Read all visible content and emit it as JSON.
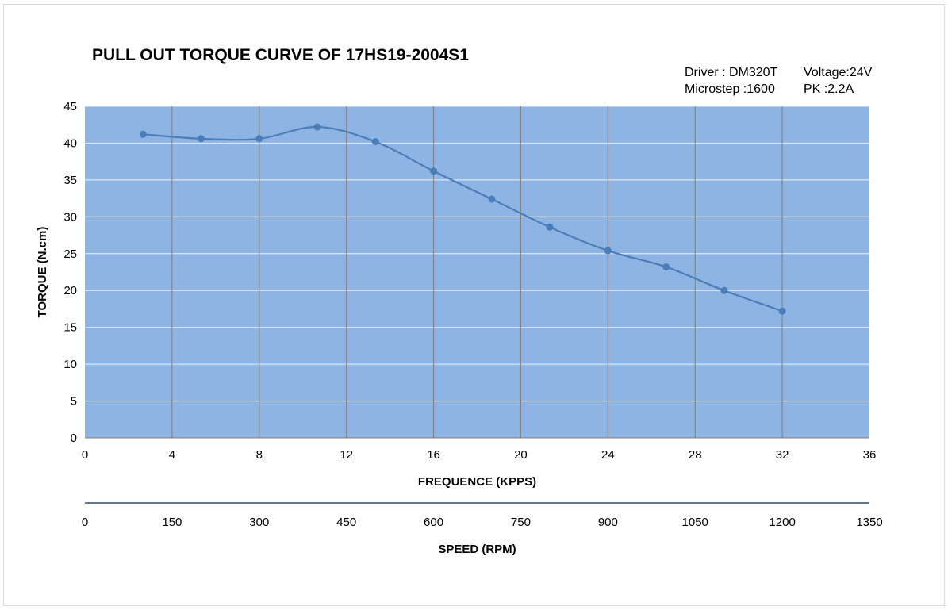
{
  "chart_data": {
    "type": "line",
    "title": "PULL OUT TORQUE CURVE OF 17HS19-2004S1",
    "info": {
      "driver": "Driver : DM320T",
      "voltage": "Voltage:24V",
      "microstep": "Microstep :1600",
      "pk": "PK :2.2A"
    },
    "xlabel": "FREQUENCE (KPPS)",
    "ylabel": "TORQUE (N.cm)",
    "x2label": "SPEED (RPM)",
    "xlim": [
      0,
      36
    ],
    "ylim": [
      0,
      45
    ],
    "xticks": [
      "0",
      "4",
      "8",
      "12",
      "16",
      "20",
      "24",
      "28",
      "32",
      "36"
    ],
    "yticks": [
      "0",
      "5",
      "10",
      "15",
      "20",
      "25",
      "30",
      "35",
      "40",
      "45"
    ],
    "x2ticks": [
      "0",
      "150",
      "300",
      "450",
      "600",
      "750",
      "900",
      "1050",
      "1200",
      "1350"
    ],
    "grid": true,
    "colors": {
      "plot_bg": "#8eb4e3",
      "line": "#4a7ebb",
      "axis": "#1f4e79",
      "grid_h": "#dce6f2",
      "grid_v": "#7f7f7f"
    },
    "series": [
      {
        "x": [
          2.67,
          5.33,
          8.0,
          10.67,
          13.33,
          16.0,
          18.67,
          21.33,
          24.0,
          26.67,
          29.33,
          32.0
        ],
        "y": [
          41.2,
          40.6,
          40.6,
          42.2,
          40.2,
          36.2,
          32.4,
          28.6,
          25.4,
          23.2,
          20.0,
          17.2
        ]
      }
    ]
  }
}
